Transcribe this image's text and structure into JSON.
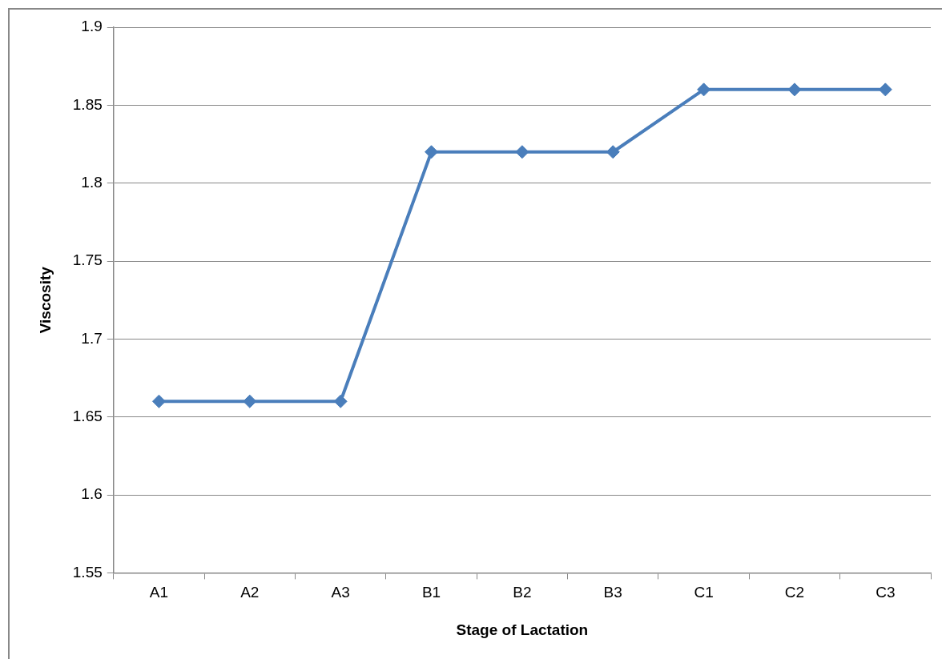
{
  "chart_data": {
    "type": "line",
    "xlabel": "Stage of Lactation",
    "ylabel": "Viscosity",
    "categories": [
      "A1",
      "A2",
      "A3",
      "B1",
      "B2",
      "B3",
      "C1",
      "C2",
      "C3"
    ],
    "series": [
      {
        "color": "#4a7ebb",
        "values": [
          1.66,
          1.66,
          1.66,
          1.82,
          1.82,
          1.82,
          1.86,
          1.86,
          1.86
        ]
      }
    ],
    "ylim": [
      1.55,
      1.9
    ],
    "yticks": [
      1.55,
      1.6,
      1.65,
      1.7,
      1.75,
      1.8,
      1.85,
      1.9
    ],
    "grid": "y",
    "legend": false,
    "marker": "diamond",
    "line_style": "solid"
  }
}
